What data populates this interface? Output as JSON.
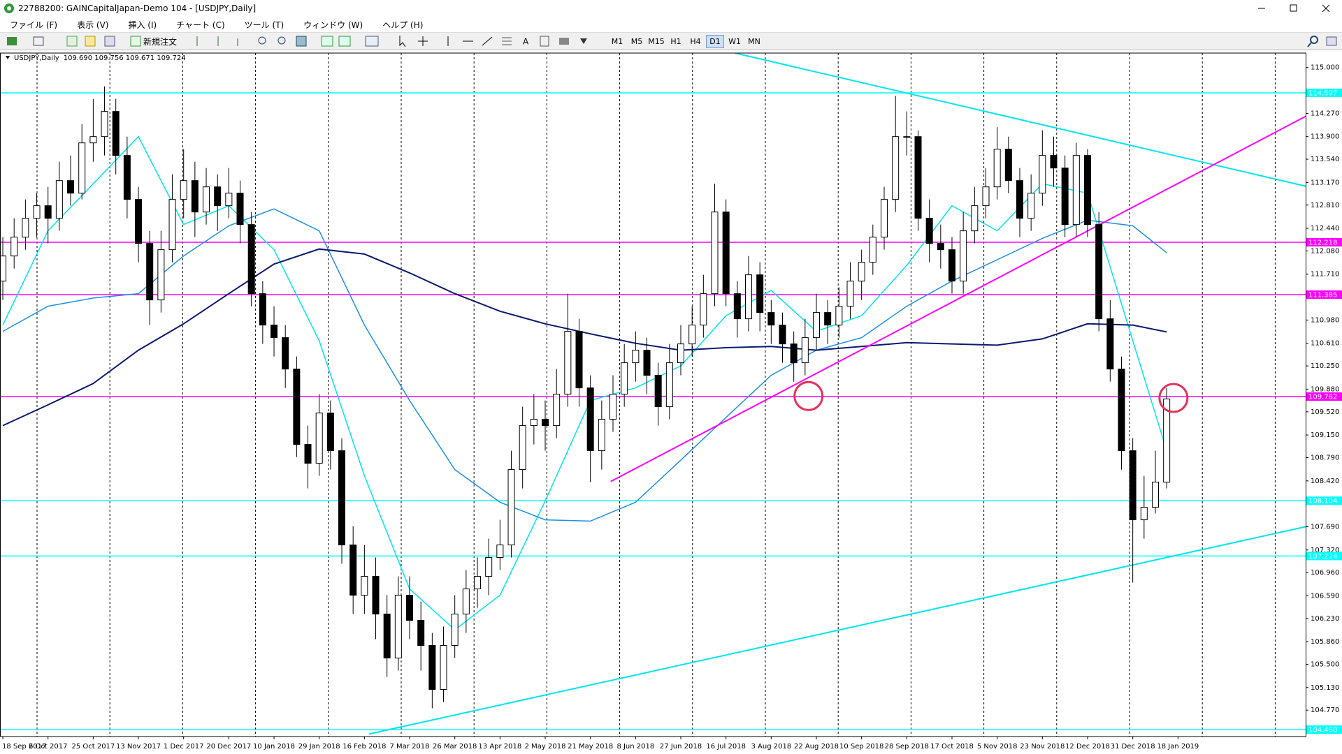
{
  "window": {
    "title": "22788200: GAINCapitalJapan-Demo 104 - [USDJPY,Daily]",
    "menu": [
      "ファイル (F)",
      "表示 (V)",
      "挿入 (I)",
      "チャート (C)",
      "ツール (T)",
      "ウィンドウ (W)",
      "ヘルプ (H)"
    ],
    "toolbar": {
      "new_order": "新規注文",
      "timeframes": [
        "M1",
        "M5",
        "M15",
        "H1",
        "H4",
        "D1",
        "W1",
        "MN"
      ],
      "active_timeframe": "D1"
    }
  },
  "chart_data": {
    "type": "candlestick",
    "title": "USDJPY,Daily",
    "ohlc_text": "109.690 109.756 109.671 109.724",
    "x_labels": [
      "18 Sep 2017",
      "6 Oct 2017",
      "25 Oct 2017",
      "13 Nov 2017",
      "1 Dec 2017",
      "20 Dec 2017",
      "10 Jan 2018",
      "29 Jan 2018",
      "16 Feb 2018",
      "7 Mar 2018",
      "26 Mar 2018",
      "13 Apr 2018",
      "2 May 2018",
      "21 May 2018",
      "8 Jun 2018",
      "27 Jun 2018",
      "16 Jul 2018",
      "3 Aug 2018",
      "22 Aug 2018",
      "10 Sep 2018",
      "28 Sep 2018",
      "17 Oct 2018",
      "5 Nov 2018",
      "23 Nov 2018",
      "12 Dec 2018",
      "31 Dec 2018",
      "18 Jan 2019"
    ],
    "xlim": [
      -0.25,
      115.3
    ],
    "ylim": [
      104.35,
      115.23
    ],
    "open": [
      111.6,
      112.0,
      112.3,
      112.6,
      112.8,
      112.6,
      113.2,
      113.0,
      113.8,
      113.9,
      114.3,
      113.6,
      112.9,
      112.2,
      111.3,
      112.1,
      112.9,
      113.2,
      112.7,
      113.1,
      112.8,
      113.0,
      112.5,
      111.4,
      110.9,
      110.7,
      110.2,
      109.0,
      108.7,
      109.5,
      108.9,
      107.4,
      106.6,
      106.9,
      106.3,
      105.6,
      106.6,
      106.2,
      105.8,
      105.1,
      105.8,
      106.3,
      106.7,
      106.9,
      107.2,
      107.4,
      108.6,
      109.3,
      109.4,
      109.3,
      109.8,
      110.8,
      109.9,
      108.9,
      109.4,
      109.8,
      110.3,
      110.5,
      110.1,
      109.6,
      110.3,
      110.6,
      110.9,
      111.4,
      112.7,
      111.4,
      111.0,
      111.7,
      111.1,
      110.9,
      110.6,
      110.3,
      110.7,
      111.1,
      110.9,
      111.2,
      111.6,
      111.9,
      112.3,
      112.9,
      113.9,
      113.9,
      112.6,
      112.2,
      112.1,
      111.6,
      112.4,
      112.8,
      113.1,
      113.7,
      113.2,
      112.6,
      113.0,
      113.6,
      113.4,
      112.5,
      113.6,
      112.5,
      111.0,
      110.2,
      108.9,
      107.8,
      108.0,
      108.4
    ],
    "high": [
      112.3,
      112.6,
      112.9,
      113.0,
      113.1,
      113.5,
      113.6,
      114.1,
      114.5,
      114.7,
      114.5,
      113.9,
      113.1,
      112.4,
      112.4,
      113.3,
      113.7,
      113.5,
      113.4,
      113.3,
      113.4,
      113.2,
      112.7,
      111.6,
      111.2,
      110.9,
      110.4,
      109.3,
      109.8,
      109.7,
      109.1,
      107.7,
      107.4,
      107.2,
      106.6,
      106.9,
      106.9,
      106.5,
      106.0,
      106.1,
      106.6,
      107.0,
      107.2,
      107.5,
      107.8,
      108.9,
      109.6,
      109.8,
      109.7,
      110.2,
      111.4,
      111.0,
      110.1,
      109.7,
      110.1,
      110.6,
      110.8,
      110.7,
      110.3,
      110.6,
      110.9,
      111.2,
      111.7,
      113.15,
      112.9,
      111.6,
      112.0,
      111.9,
      111.3,
      111.1,
      110.8,
      111.0,
      111.4,
      111.3,
      111.5,
      111.9,
      112.1,
      112.5,
      113.1,
      114.55,
      114.3,
      114.0,
      112.9,
      112.5,
      112.3,
      112.7,
      113.1,
      113.4,
      114.05,
      113.9,
      113.4,
      113.3,
      114.0,
      113.9,
      113.6,
      113.8,
      113.7,
      112.7,
      111.3,
      110.4,
      109.1,
      108.5,
      108.9,
      109.9
    ],
    "low": [
      111.3,
      111.8,
      112.1,
      112.3,
      112.2,
      112.4,
      112.8,
      112.9,
      113.5,
      113.6,
      113.3,
      112.6,
      111.9,
      110.9,
      111.1,
      111.9,
      112.6,
      112.3,
      112.5,
      112.4,
      112.6,
      112.2,
      111.2,
      110.6,
      110.4,
      109.9,
      108.8,
      108.3,
      108.5,
      108.6,
      107.1,
      106.3,
      106.3,
      105.9,
      105.3,
      105.4,
      105.9,
      105.4,
      104.8,
      104.9,
      105.6,
      106.0,
      106.4,
      106.6,
      107.0,
      107.2,
      108.3,
      109.0,
      108.9,
      109.1,
      109.6,
      109.6,
      108.4,
      108.6,
      109.2,
      109.6,
      110.0,
      109.8,
      109.3,
      109.4,
      110.1,
      110.4,
      110.7,
      111.2,
      111.2,
      110.7,
      110.8,
      110.8,
      110.6,
      110.3,
      110.0,
      110.1,
      110.5,
      110.6,
      110.7,
      111.0,
      111.3,
      111.7,
      112.1,
      112.7,
      113.6,
      112.4,
      111.9,
      111.8,
      111.4,
      111.4,
      112.2,
      112.6,
      112.9,
      113.0,
      112.3,
      112.4,
      112.8,
      113.1,
      112.3,
      112.3,
      112.3,
      110.8,
      110.0,
      108.6,
      106.8,
      107.5,
      107.9,
      108.3
    ],
    "close": [
      112.0,
      112.3,
      112.6,
      112.8,
      112.6,
      113.2,
      113.0,
      113.8,
      113.9,
      114.3,
      113.6,
      112.9,
      112.2,
      111.3,
      112.1,
      112.9,
      113.2,
      112.7,
      113.1,
      112.8,
      113.0,
      112.5,
      111.4,
      110.9,
      110.7,
      110.2,
      109.0,
      108.7,
      109.5,
      108.9,
      107.4,
      106.6,
      106.9,
      106.3,
      105.6,
      106.6,
      106.2,
      105.8,
      105.1,
      105.8,
      106.3,
      106.7,
      106.9,
      107.2,
      107.4,
      108.6,
      109.3,
      109.4,
      109.3,
      109.8,
      110.8,
      109.9,
      108.9,
      109.4,
      109.8,
      110.3,
      110.5,
      110.1,
      109.6,
      110.3,
      110.6,
      110.9,
      111.4,
      112.7,
      111.4,
      111.0,
      111.7,
      111.1,
      110.9,
      110.6,
      110.3,
      110.7,
      111.1,
      110.9,
      111.2,
      111.6,
      111.9,
      112.3,
      112.9,
      113.9,
      113.9,
      112.6,
      112.2,
      112.1,
      111.6,
      112.4,
      112.8,
      113.1,
      113.7,
      113.2,
      112.6,
      113.0,
      113.6,
      113.4,
      112.5,
      113.6,
      112.5,
      111.0,
      110.2,
      108.9,
      107.8,
      108.0,
      108.4,
      109.724
    ],
    "up_color": "#ffffff",
    "down_color": "#000000",
    "yticks": [
      {
        "value": 115.0,
        "label": "115.000"
      },
      {
        "value": 114.27,
        "label": "114.270"
      },
      {
        "value": 113.9,
        "label": "113.900"
      },
      {
        "value": 113.54,
        "label": "113.540"
      },
      {
        "value": 113.17,
        "label": "113.170"
      },
      {
        "value": 112.81,
        "label": "112.810"
      },
      {
        "value": 112.44,
        "label": "112.440"
      },
      {
        "value": 112.08,
        "label": "112.080"
      },
      {
        "value": 111.71,
        "label": "111.710"
      },
      {
        "value": 110.98,
        "label": "110.980"
      },
      {
        "value": 110.61,
        "label": "110.610"
      },
      {
        "value": 110.25,
        "label": "110.250"
      },
      {
        "value": 109.88,
        "label": "109.880"
      },
      {
        "value": 109.52,
        "label": "109.520"
      },
      {
        "value": 109.15,
        "label": "109.150"
      },
      {
        "value": 108.79,
        "label": "108.790"
      },
      {
        "value": 108.42,
        "label": "108.420"
      },
      {
        "value": 107.69,
        "label": "107.690"
      },
      {
        "value": 107.32,
        "label": "107.320"
      },
      {
        "value": 106.96,
        "label": "106.960"
      },
      {
        "value": 106.59,
        "label": "106.590"
      },
      {
        "value": 106.23,
        "label": "106.230"
      },
      {
        "value": 105.86,
        "label": "105.860"
      },
      {
        "value": 105.5,
        "label": "105.500"
      },
      {
        "value": 105.13,
        "label": "105.130"
      },
      {
        "value": 104.77,
        "label": "104.770"
      }
    ],
    "moving_averages": [
      {
        "color": "#00e5ee",
        "x": [
          0,
          4,
          8,
          12,
          16,
          20,
          24,
          28,
          32,
          36,
          40,
          44,
          48,
          52,
          56,
          60,
          64,
          68,
          72,
          76,
          80,
          84,
          88,
          92,
          96,
          100,
          103
        ],
        "values": [
          110.9,
          112.4,
          113.15,
          113.9,
          112.5,
          112.8,
          112.1,
          110.65,
          108.5,
          106.7,
          106.05,
          106.6,
          108.1,
          109.7,
          109.9,
          110.25,
          111.05,
          111.45,
          110.8,
          111.05,
          111.85,
          112.8,
          112.4,
          113.15,
          113.0,
          110.65,
          108.9
        ]
      },
      {
        "color": "#1e8fe6",
        "x": [
          0,
          4,
          8,
          12,
          16,
          20,
          24,
          28,
          32,
          36,
          40,
          44,
          48,
          52,
          56,
          60,
          64,
          68,
          72,
          76,
          80,
          84,
          88,
          92,
          96,
          100,
          103
        ],
        "values": [
          110.8,
          111.2,
          111.33,
          111.4,
          112.0,
          112.48,
          112.75,
          112.4,
          110.9,
          109.7,
          108.6,
          108.08,
          107.8,
          107.78,
          108.08,
          108.75,
          109.43,
          110.1,
          110.5,
          110.7,
          111.2,
          111.6,
          111.94,
          112.28,
          112.57,
          112.48,
          112.05
        ]
      },
      {
        "color": "#0a1a6e",
        "x": [
          0,
          4,
          8,
          12,
          16,
          20,
          24,
          28,
          32,
          36,
          40,
          44,
          48,
          52,
          56,
          60,
          64,
          68,
          72,
          76,
          80,
          84,
          88,
          92,
          96,
          100,
          103
        ],
        "values": [
          109.3,
          109.63,
          109.97,
          110.5,
          110.92,
          111.4,
          111.87,
          112.11,
          112.03,
          111.73,
          111.4,
          111.12,
          110.92,
          110.76,
          110.61,
          110.5,
          110.54,
          110.56,
          110.5,
          110.56,
          110.62,
          110.6,
          110.58,
          110.68,
          110.92,
          110.9,
          110.79
        ]
      }
    ],
    "levels": [
      {
        "price": 114.597,
        "color": "#00ffff"
      },
      {
        "price": 112.218,
        "color": "#ff00ff"
      },
      {
        "price": 111.385,
        "color": "#ff00ff"
      },
      {
        "price": 109.762,
        "color": "#ff00ff"
      },
      {
        "price": 108.104,
        "color": "#00ffff"
      },
      {
        "price": 107.224,
        "color": "#00ffff"
      },
      {
        "price": {
          "value": 104.46,
          "label": "104.460"
        },
        "color": "#00ffff"
      }
    ],
    "trendlines": [
      {
        "color": "#00e5ee",
        "x": [
          64.8,
          115.8
        ],
        "values": [
          115.23,
          113.09
        ]
      },
      {
        "color": "#00e5ee",
        "x": [
          32.4,
          115.8
        ],
        "values": [
          104.39,
          107.71
        ]
      },
      {
        "color": "#ff00ff",
        "x": [
          53.8,
          115.8
        ],
        "values": [
          108.41,
          114.27
        ]
      }
    ],
    "markers": [
      {
        "x": 71.3,
        "value": 109.77,
        "color": "#e8305a"
      },
      {
        "x": 103.6,
        "value": 109.74,
        "color": "#e8305a"
      }
    ]
  }
}
